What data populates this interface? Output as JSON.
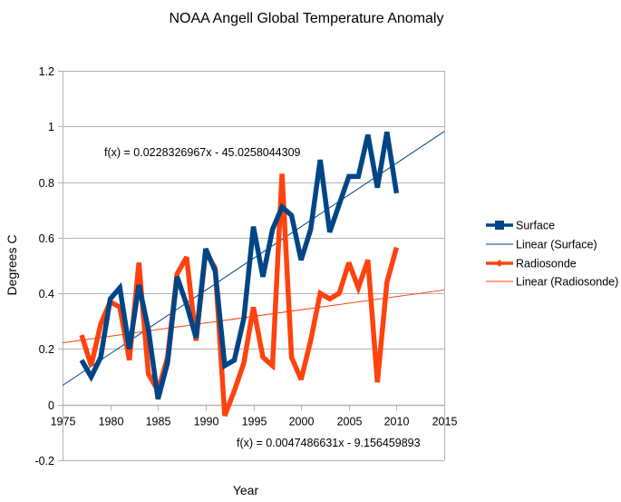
{
  "chart_data": {
    "type": "line",
    "title": "NOAA Angell Global Temperature Anomaly",
    "xlabel": "Year",
    "ylabel": "Degrees C",
    "xlim": [
      1975,
      2015
    ],
    "ylim": [
      -0.2,
      1.2
    ],
    "x_ticks": [
      1975,
      1980,
      1985,
      1990,
      1995,
      2000,
      2005,
      2010,
      2015
    ],
    "y_ticks": [
      -0.2,
      0,
      0.2,
      0.4,
      0.6,
      0.8,
      1,
      1.2
    ],
    "x_tick_labels": [
      "1975",
      "1980",
      "1985",
      "1990",
      "1995",
      "2000",
      "2005",
      "2010",
      "2015"
    ],
    "y_tick_labels": [
      "-0.2",
      "0",
      "0.2",
      "0.4",
      "0.6",
      "0.8",
      "1",
      "1.2"
    ],
    "grid": "horizontal",
    "legend_position": "right",
    "x": [
      1977,
      1978,
      1979,
      1980,
      1981,
      1982,
      1983,
      1984,
      1985,
      1986,
      1987,
      1988,
      1989,
      1990,
      1991,
      1992,
      1993,
      1994,
      1995,
      1996,
      1997,
      1998,
      1999,
      2000,
      2001,
      2002,
      2003,
      2004,
      2005,
      2006,
      2007,
      2008,
      2009,
      2010
    ],
    "series": [
      {
        "name": "Surface",
        "color": "#004586",
        "marker": "square",
        "values": [
          0.16,
          0.1,
          0.17,
          0.38,
          0.42,
          0.2,
          0.43,
          0.27,
          0.02,
          0.15,
          0.46,
          0.36,
          0.24,
          0.56,
          0.48,
          0.14,
          0.16,
          0.31,
          0.64,
          0.46,
          0.63,
          0.71,
          0.68,
          0.52,
          0.63,
          0.88,
          0.62,
          0.72,
          0.82,
          0.82,
          0.97,
          0.78,
          0.98,
          0.76
        ]
      },
      {
        "name": "Radiosonde",
        "color": "#ff420e",
        "marker": "diamond",
        "values": [
          0.25,
          0.14,
          0.29,
          0.37,
          0.35,
          0.16,
          0.51,
          0.11,
          0.05,
          0.17,
          0.47,
          0.53,
          0.23,
          0.55,
          0.49,
          -0.04,
          0.05,
          0.15,
          0.35,
          0.17,
          0.14,
          0.83,
          0.17,
          0.09,
          0.23,
          0.4,
          0.38,
          0.4,
          0.51,
          0.42,
          0.52,
          0.08,
          0.44,
          0.565
        ]
      }
    ],
    "trendlines": [
      {
        "name": "Linear (Surface)",
        "color": "#004586",
        "slope": 0.0228326967,
        "intercept": -45.0258044309,
        "equation": "f(x) = 0.0228326967x - 45.0258044309"
      },
      {
        "name": "Linear (Radiosonde)",
        "color": "#ff420e",
        "slope": 0.0047486631,
        "intercept": -9.156459893,
        "equation": "f(x) = 0.0047486631x - 9.156459893"
      }
    ],
    "legend": [
      "Surface",
      "Linear (Surface)",
      "Radiosonde",
      "Linear (Radiosonde)"
    ]
  },
  "colors": {
    "grid": "#b3b3b3",
    "axis": "#b3b3b3"
  }
}
